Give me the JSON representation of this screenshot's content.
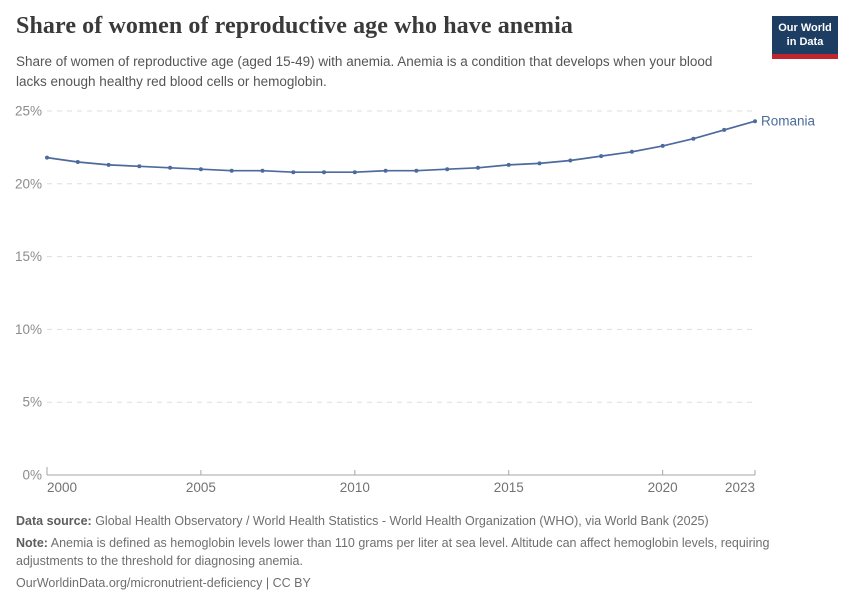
{
  "header": {
    "title": "Share of women of reproductive age who have anemia",
    "subtitle": "Share of women of reproductive age (aged 15-49) with anemia. Anemia is a condition that develops when your blood lacks enough healthy red blood cells or hemoglobin.",
    "logo": {
      "line1": "Our World",
      "line2": "in Data"
    }
  },
  "chart_data": {
    "type": "line",
    "title": "Share of women of reproductive age who have anemia",
    "x": [
      2000,
      2001,
      2002,
      2003,
      2004,
      2005,
      2006,
      2007,
      2008,
      2009,
      2010,
      2011,
      2012,
      2013,
      2014,
      2015,
      2016,
      2017,
      2018,
      2019,
      2020,
      2021,
      2022,
      2023
    ],
    "series": [
      {
        "name": "Romania",
        "color": "#4C6A9C",
        "values": [
          21.8,
          21.5,
          21.3,
          21.2,
          21.1,
          21.0,
          20.9,
          20.9,
          20.8,
          20.8,
          20.8,
          20.9,
          20.9,
          21.0,
          21.1,
          21.3,
          21.4,
          21.6,
          21.9,
          22.2,
          22.6,
          23.1,
          23.7,
          24.3
        ]
      }
    ],
    "xlabel": "",
    "ylabel": "",
    "ylim": [
      0,
      25
    ],
    "yticks": [
      0,
      5,
      10,
      15,
      20,
      25
    ],
    "ytick_labels": [
      "0%",
      "5%",
      "10%",
      "15%",
      "20%",
      "25%"
    ],
    "xticks": [
      2000,
      2005,
      2010,
      2015,
      2020,
      2023
    ],
    "xtick_labels": [
      "2000",
      "2005",
      "2010",
      "2015",
      "2020",
      "2023"
    ],
    "grid": "horizontal-dashed",
    "legend_position": "end-of-line-label",
    "end_label": "Romania"
  },
  "colors": {
    "line": "#4C6A9C",
    "gridline": "#dddddd",
    "axis": "#a5a5a5",
    "logo_bg": "#1d3d63",
    "logo_bar": "#c0262e"
  },
  "footer": {
    "source_label": "Data source:",
    "source_text": " Global Health Observatory / World Health Statistics - World Health Organization (WHO), via World Bank (2025)",
    "note_label": "Note:",
    "note_text": " Anemia is defined as hemoglobin levels lower than 110 grams per liter at sea level. Altitude can affect hemoglobin levels, requiring adjustments to the threshold for diagnosing anemia.",
    "link_text": "OurWorldinData.org/micronutrient-deficiency | CC BY"
  }
}
